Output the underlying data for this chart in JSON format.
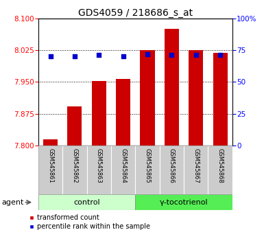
{
  "title": "GDS4059 / 218686_s_at",
  "samples": [
    "GSM545861",
    "GSM545862",
    "GSM545863",
    "GSM545864",
    "GSM545865",
    "GSM545866",
    "GSM545867",
    "GSM545868"
  ],
  "bar_values": [
    7.815,
    7.893,
    7.953,
    7.958,
    8.025,
    8.075,
    8.025,
    8.018
  ],
  "percentile_values": [
    70,
    70,
    71,
    70,
    72,
    71,
    71,
    71
  ],
  "bar_bottom": 7.8,
  "ylim_left": [
    7.8,
    8.1
  ],
  "ylim_right": [
    0,
    100
  ],
  "yticks_left": [
    7.8,
    7.875,
    7.95,
    8.025,
    8.1
  ],
  "yticks_right": [
    0,
    25,
    50,
    75,
    100
  ],
  "ytick_labels_right": [
    "0",
    "25",
    "50",
    "75",
    "100%"
  ],
  "bar_color": "#cc0000",
  "blue_color": "#0000cc",
  "control_label": "control",
  "treatment_label": "γ-tocotrienol",
  "agent_label": "agent",
  "control_bg": "#ccffcc",
  "treatment_bg": "#55ee55",
  "sample_bg": "#cccccc",
  "legend_bar_label": "transformed count",
  "legend_dot_label": "percentile rank within the sample",
  "title_fontsize": 10,
  "tick_fontsize": 7.5,
  "sample_fontsize": 6,
  "agent_fontsize": 8,
  "legend_fontsize": 7
}
